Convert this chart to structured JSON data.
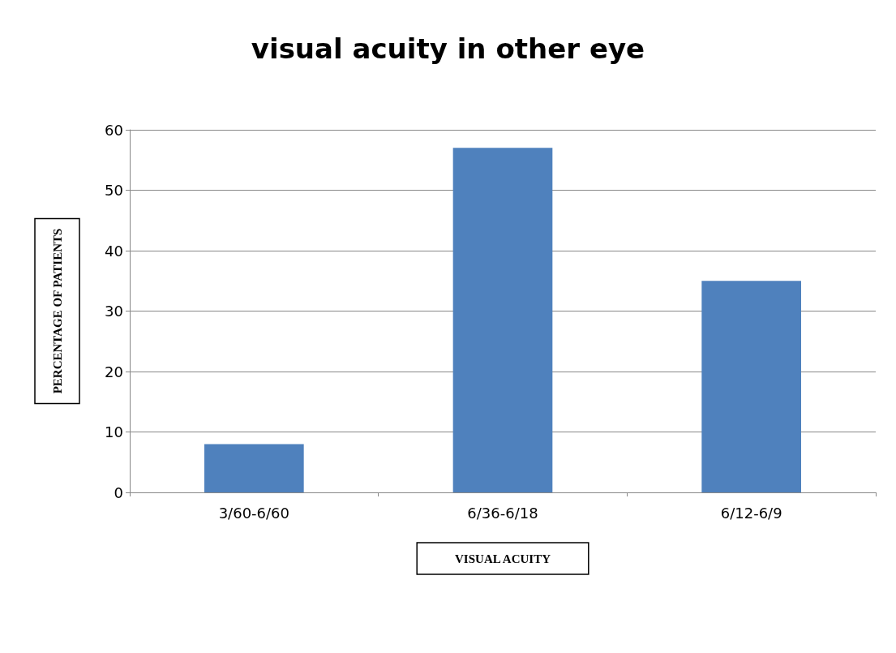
{
  "chart_data": {
    "type": "bar",
    "title": "visual acuity in other eye",
    "xlabel": "VISUAL ACUITY",
    "ylabel": "PERCENTAGE OF PATIENTS",
    "categories": [
      "3/60-6/60",
      "6/36-6/18",
      "6/12-6/9"
    ],
    "values": [
      8,
      57,
      35
    ],
    "color": "#4f81bd",
    "ylim": [
      0,
      60
    ],
    "yticks": [
      0,
      10,
      20,
      30,
      40,
      50,
      60
    ],
    "grid": "y"
  }
}
